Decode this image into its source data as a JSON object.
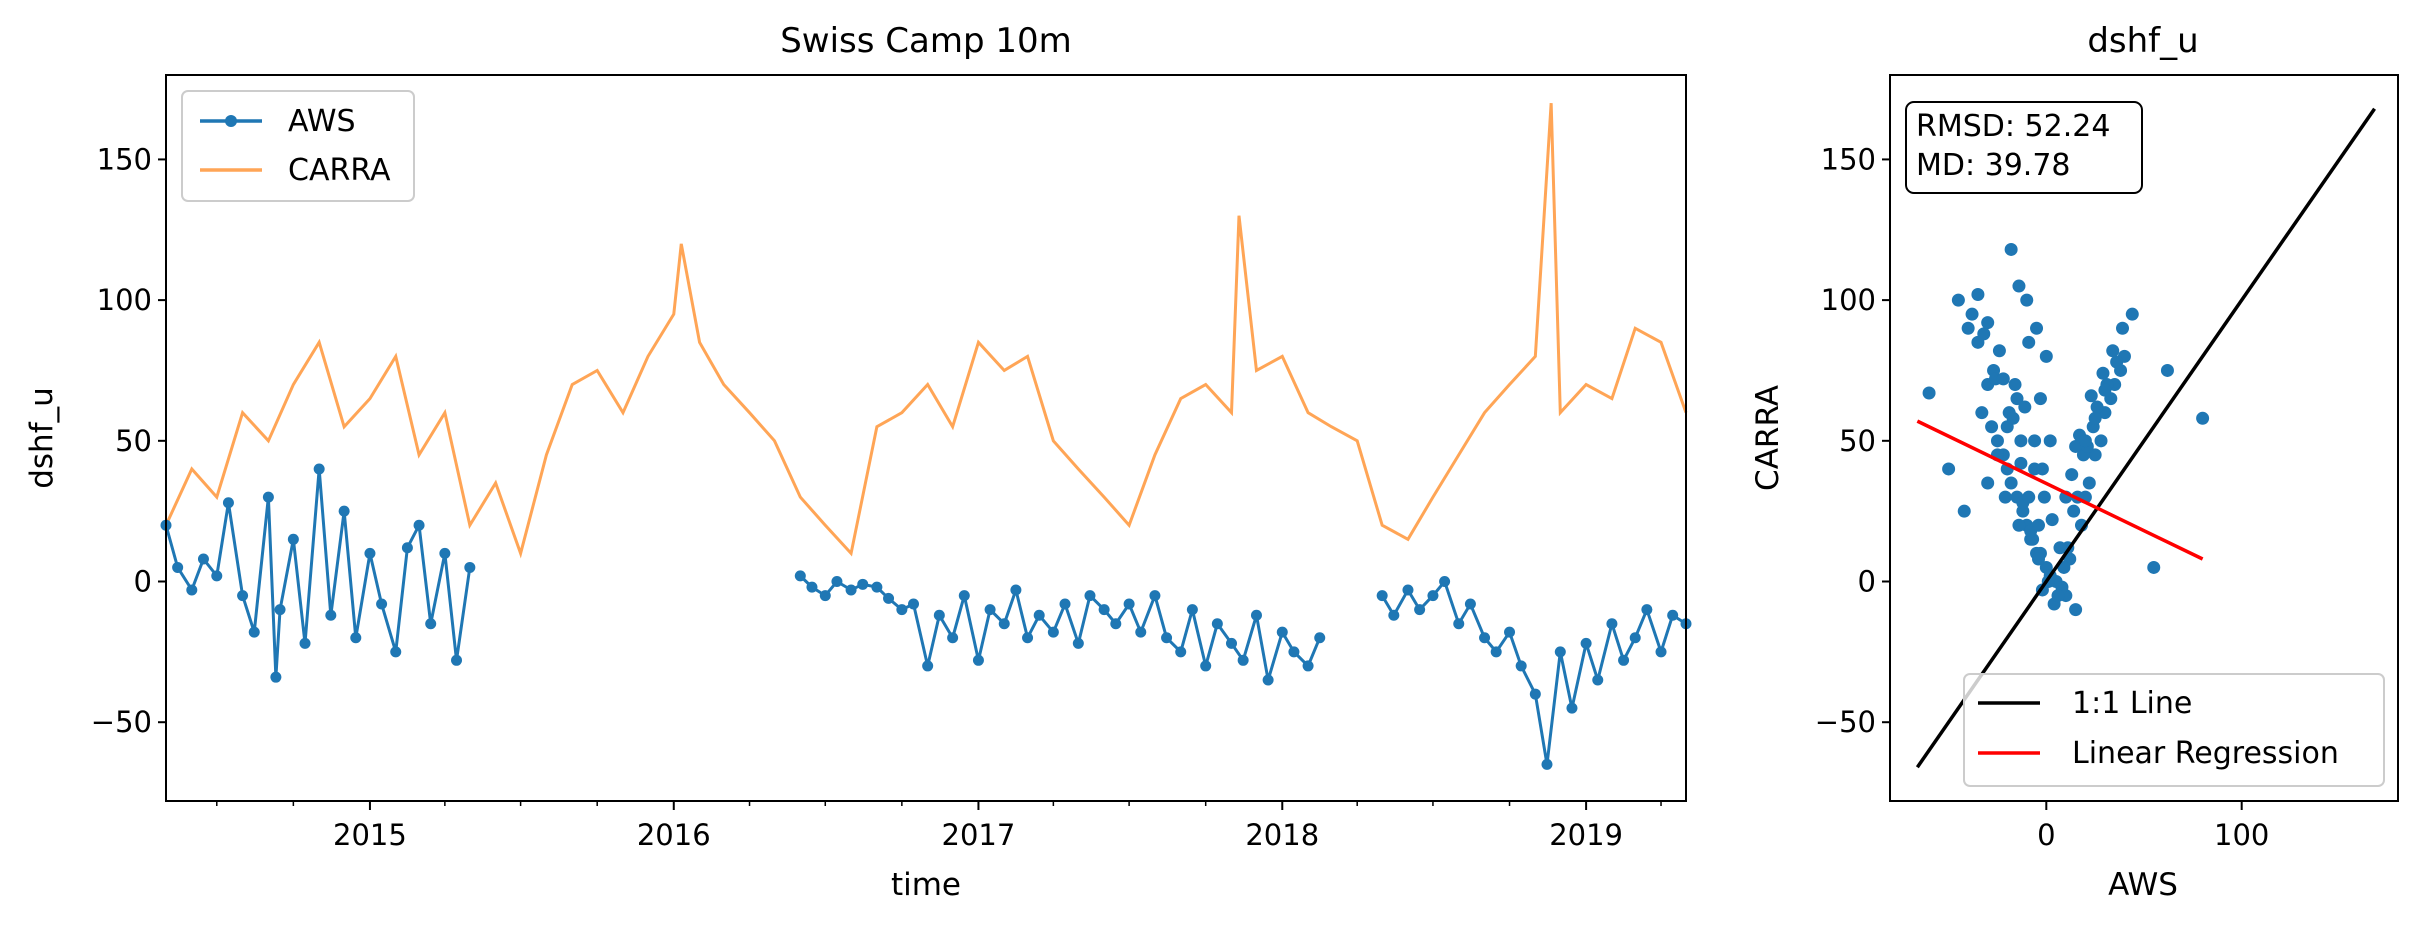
{
  "chart_data": [
    {
      "type": "line",
      "title": "Swiss Camp 10m",
      "xlabel": "time",
      "ylabel": "dshf_u",
      "xlim": [
        "2014-05-01",
        "2019-05-01"
      ],
      "ylim": [
        -78,
        180
      ],
      "x_ticks": [
        "2015",
        "2016",
        "2017",
        "2018",
        "2019"
      ],
      "y_ticks": [
        "−50",
        "0",
        "50",
        "100",
        "150"
      ],
      "legend": {
        "position": "top-left",
        "entries": [
          "AWS",
          "CARRA"
        ]
      },
      "colors": {
        "AWS": "#1f77b4",
        "CARRA": "#ff7f0e"
      },
      "series": [
        {
          "name": "AWS",
          "marker": "dot",
          "x": [
            "2014-05-01",
            "2014-05-15",
            "2014-06-01",
            "2014-06-15",
            "2014-07-01",
            "2014-07-15",
            "2014-08-01",
            "2014-08-15",
            "2014-09-01",
            "2014-09-10",
            "2014-09-15",
            "2014-10-01",
            "2014-10-15",
            "2014-11-01",
            "2014-11-15",
            "2014-12-01",
            "2014-12-15",
            "2015-01-01",
            "2015-01-15",
            "2015-02-01",
            "2015-02-15",
            "2015-03-01",
            "2015-03-15",
            "2015-04-01",
            "2015-04-15",
            "2015-05-01",
            "2016-06-01",
            "2016-06-15",
            "2016-07-01",
            "2016-07-15",
            "2016-08-01",
            "2016-08-15",
            "2016-09-01",
            "2016-09-15",
            "2016-10-01",
            "2016-10-15",
            "2016-11-01",
            "2016-11-15",
            "2016-12-01",
            "2016-12-15",
            "2017-01-01",
            "2017-01-15",
            "2017-02-01",
            "2017-02-15",
            "2017-03-01",
            "2017-03-15",
            "2017-04-01",
            "2017-04-15",
            "2017-05-01",
            "2017-05-15",
            "2017-06-01",
            "2017-06-15",
            "2017-07-01",
            "2017-07-15",
            "2017-08-01",
            "2017-08-15",
            "2017-09-01",
            "2017-09-15",
            "2017-10-01",
            "2017-10-15",
            "2017-11-01",
            "2017-11-15",
            "2017-12-01",
            "2017-12-15",
            "2018-01-01",
            "2018-01-15",
            "2018-02-01",
            "2018-02-15",
            "2018-05-01",
            "2018-05-15",
            "2018-06-01",
            "2018-06-15",
            "2018-07-01",
            "2018-07-15",
            "2018-08-01",
            "2018-08-15",
            "2018-09-01",
            "2018-09-15",
            "2018-10-01",
            "2018-10-15",
            "2018-11-01",
            "2018-11-15",
            "2018-12-01",
            "2018-12-15",
            "2019-01-01",
            "2019-01-15",
            "2019-02-01",
            "2019-02-15",
            "2019-03-01",
            "2019-03-15",
            "2019-04-01",
            "2019-04-15",
            "2019-05-01"
          ],
          "values": [
            20,
            5,
            -3,
            8,
            2,
            28,
            -5,
            -18,
            30,
            -34,
            -10,
            15,
            -22,
            40,
            -12,
            25,
            -20,
            10,
            -8,
            -25,
            12,
            20,
            -15,
            10,
            -28,
            5,
            2,
            -2,
            -5,
            0,
            -3,
            -1,
            -2,
            -6,
            -10,
            -8,
            -30,
            -12,
            -20,
            -5,
            -28,
            -10,
            -15,
            -3,
            -20,
            -12,
            -18,
            -8,
            -22,
            -5,
            -10,
            -15,
            -8,
            -18,
            -5,
            -20,
            -25,
            -10,
            -30,
            -15,
            -22,
            -28,
            -12,
            -35,
            -18,
            -25,
            -30,
            -20,
            -5,
            -12,
            -3,
            -10,
            -5,
            0,
            -15,
            -8,
            -20,
            -25,
            -18,
            -30,
            -40,
            -65,
            -25,
            -45,
            -22,
            -35,
            -15,
            -28,
            -20,
            -10,
            -25,
            -12,
            -15
          ]
        },
        {
          "name": "CARRA",
          "x": [
            "2014-05-01",
            "2014-06-01",
            "2014-07-01",
            "2014-08-01",
            "2014-09-01",
            "2014-10-01",
            "2014-11-01",
            "2014-12-01",
            "2015-01-01",
            "2015-02-01",
            "2015-03-01",
            "2015-04-01",
            "2015-05-01",
            "2015-06-01",
            "2015-07-01",
            "2015-08-01",
            "2015-09-01",
            "2015-10-01",
            "2015-11-01",
            "2015-12-01",
            "2016-01-01",
            "2016-01-10",
            "2016-02-01",
            "2016-03-01",
            "2016-04-01",
            "2016-05-01",
            "2016-06-01",
            "2016-07-01",
            "2016-08-01",
            "2016-09-01",
            "2016-10-01",
            "2016-11-01",
            "2016-12-01",
            "2017-01-01",
            "2017-02-01",
            "2017-03-01",
            "2017-04-01",
            "2017-05-01",
            "2017-06-01",
            "2017-07-01",
            "2017-08-01",
            "2017-09-01",
            "2017-10-01",
            "2017-11-01",
            "2017-11-10",
            "2017-12-01",
            "2018-01-01",
            "2018-02-01",
            "2018-03-01",
            "2018-04-01",
            "2018-05-01",
            "2018-06-01",
            "2018-07-01",
            "2018-08-01",
            "2018-09-01",
            "2018-10-01",
            "2018-11-01",
            "2018-11-20",
            "2018-12-01",
            "2019-01-01",
            "2019-02-01",
            "2019-03-01",
            "2019-04-01",
            "2019-05-01"
          ],
          "values": [
            20,
            40,
            30,
            60,
            50,
            70,
            85,
            55,
            65,
            80,
            45,
            60,
            20,
            35,
            10,
            45,
            70,
            75,
            60,
            80,
            95,
            120,
            85,
            70,
            60,
            50,
            30,
            20,
            10,
            55,
            60,
            70,
            55,
            85,
            75,
            80,
            50,
            40,
            30,
            20,
            45,
            65,
            70,
            60,
            130,
            75,
            80,
            60,
            55,
            50,
            20,
            15,
            30,
            45,
            60,
            70,
            80,
            170,
            60,
            70,
            65,
            90,
            85,
            60
          ]
        }
      ]
    },
    {
      "type": "scatter",
      "title": "dshf_u",
      "xlabel": "AWS",
      "ylabel": "CARRA",
      "xlim": [
        -80,
        180
      ],
      "ylim": [
        -78,
        180
      ],
      "x_ticks": [
        "0",
        "100"
      ],
      "y_ticks": [
        "−50",
        "0",
        "50",
        "100",
        "150"
      ],
      "annotations": [
        "RMSD: 52.24",
        "MD: 39.78"
      ],
      "legend": {
        "position": "lower-right",
        "entries": [
          "1:1 Line",
          "Linear Regression"
        ]
      },
      "colors": {
        "points": "#1f77b4",
        "identity": "#000000",
        "regression": "#ff0000"
      },
      "lines": [
        {
          "name": "1:1 Line",
          "x": [
            -66,
            168
          ],
          "y": [
            -66,
            168
          ]
        },
        {
          "name": "Linear Regression",
          "x": [
            -66,
            80
          ],
          "y": [
            57,
            8
          ]
        }
      ],
      "points": {
        "x": [
          -30,
          -25,
          -20,
          -15,
          -10,
          -5,
          0,
          5,
          10,
          15,
          20,
          25,
          30,
          35,
          40,
          -35,
          -40,
          -45,
          -28,
          -22,
          -18,
          -12,
          -8,
          -3,
          2,
          8,
          12,
          18,
          22,
          28,
          -60,
          -50,
          -42,
          -33,
          -27,
          -21,
          -14,
          -7,
          -2,
          4,
          9,
          14,
          19,
          24,
          33,
          38,
          55,
          62,
          80,
          -10,
          -5,
          0,
          -15,
          -20,
          -25,
          -30,
          -12,
          -8,
          -4,
          1,
          6,
          11,
          16,
          21,
          26,
          31,
          36,
          -38,
          -32,
          -26,
          -19,
          -13,
          -6,
          -1,
          3,
          7,
          13,
          17,
          23,
          29,
          34,
          39,
          44,
          -18,
          -14,
          -9,
          -3,
          2,
          15,
          25,
          -35,
          -30,
          -24,
          -16,
          -11,
          -6,
          -2,
          10,
          20,
          30,
          -4,
          -9,
          -13,
          -17,
          -22
        ],
        "y": [
          70,
          50,
          40,
          30,
          20,
          10,
          5,
          0,
          -5,
          -10,
          30,
          45,
          60,
          70,
          80,
          85,
          90,
          100,
          55,
          45,
          35,
          25,
          15,
          10,
          2,
          -2,
          8,
          20,
          35,
          50,
          67,
          40,
          25,
          60,
          75,
          30,
          20,
          15,
          -3,
          -8,
          5,
          25,
          45,
          55,
          65,
          75,
          5,
          75,
          58,
          100,
          90,
          80,
          65,
          55,
          45,
          35,
          28,
          18,
          8,
          0,
          -5,
          12,
          30,
          48,
          62,
          70,
          78,
          95,
          88,
          72,
          60,
          50,
          40,
          30,
          22,
          12,
          38,
          52,
          66,
          74,
          82,
          90,
          95,
          118,
          105,
          85,
          65,
          50,
          48,
          58,
          102,
          92,
          82,
          70,
          62,
          50,
          40,
          30,
          50,
          68,
          20,
          30,
          42,
          58,
          72
        ]
      }
    }
  ]
}
